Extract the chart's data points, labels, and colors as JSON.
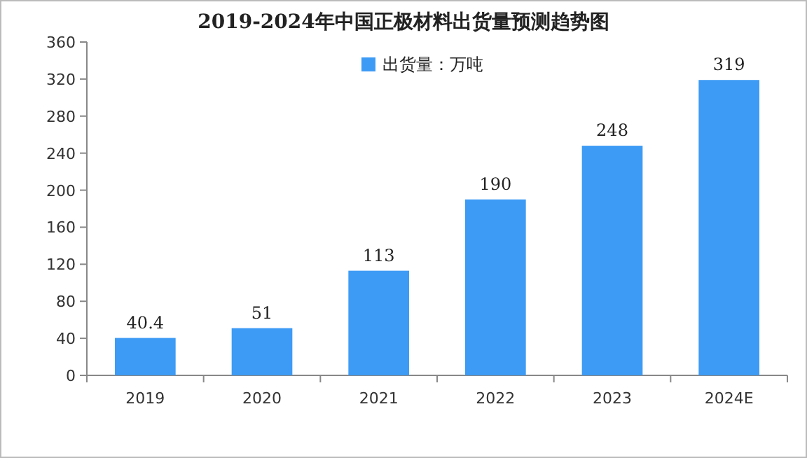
{
  "chart_data": {
    "type": "bar",
    "title": "2019-2024年中国正极材料出货量预测趋势图",
    "categories": [
      "2019",
      "2020",
      "2021",
      "2022",
      "2023",
      "2024E"
    ],
    "series": [
      {
        "name": "出货量：万吨",
        "color": "#3d9bf5",
        "values": [
          40.4,
          51,
          113,
          190,
          248,
          319
        ]
      }
    ],
    "ylim": [
      0,
      360
    ],
    "yticks": [
      0,
      40,
      80,
      120,
      160,
      200,
      240,
      280,
      320,
      360
    ],
    "data_labels": true,
    "legend": "top"
  }
}
